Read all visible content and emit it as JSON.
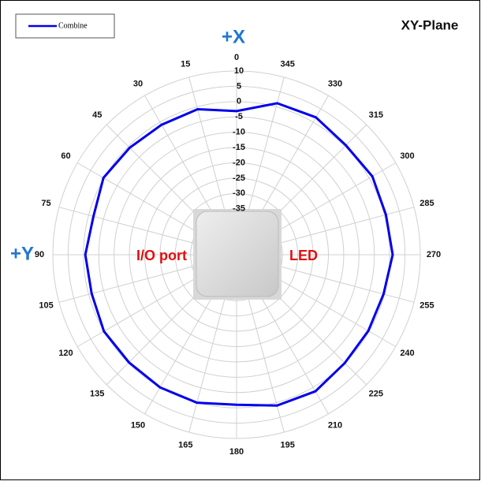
{
  "chart_data": {
    "type": "polar",
    "title": "XY-Plane",
    "annotations": [
      "+X",
      "+Y",
      "I/O port",
      "LED"
    ],
    "theta": [
      0,
      15,
      30,
      45,
      60,
      75,
      90,
      105,
      120,
      135,
      150,
      165,
      180,
      195,
      210,
      225,
      240,
      255,
      270,
      285,
      300,
      315,
      330,
      345
    ],
    "theta_direction": "counterclockwise",
    "theta_zero": "top",
    "rlim": [
      -50,
      10
    ],
    "rticks": [
      10,
      5,
      0,
      -5,
      -10,
      -15,
      -20,
      -25,
      -30,
      -35
    ],
    "grid": true,
    "legend": "top-left",
    "series": [
      {
        "name": "Combine",
        "color": "#0000ee",
        "values": [
          -3.1,
          -0.8,
          -1,
          -0.6,
          0.2,
          -1.6,
          -0.6,
          -1,
          0,
          -0.3,
          0,
          0,
          -1,
          1,
          1.5,
          0,
          -0.3,
          -0.3,
          1,
          0.5,
          1.2,
          0.5,
          1.8,
          1.2
        ]
      }
    ]
  }
}
